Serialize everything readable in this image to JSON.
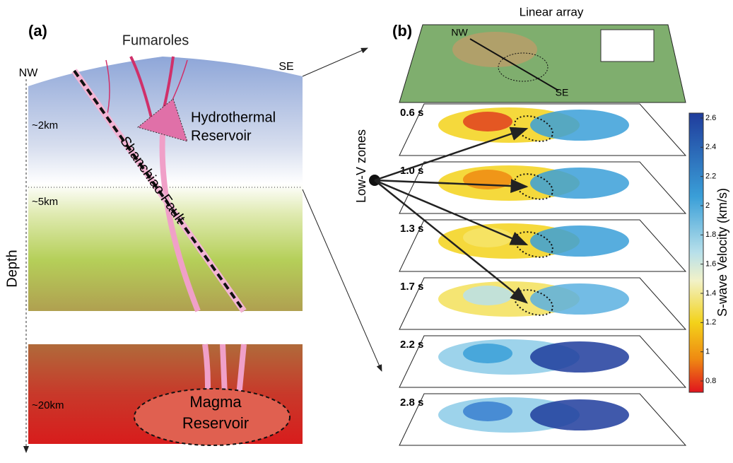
{
  "panel_a": {
    "label": "(a)",
    "fumaroles": "Fumaroles",
    "nw": "NW",
    "se": "SE",
    "depths": [
      "~2km",
      "~5km",
      "~20km"
    ],
    "depth_axis": "Depth",
    "hydrothermal": [
      "Hydrothermal",
      "Reservoir"
    ],
    "fault": "Shanchiao Fault",
    "magma": [
      "Magma",
      "Reservoir"
    ]
  },
  "panel_b": {
    "label": "(b)",
    "linear_array": "Linear array",
    "nw": "NW",
    "se": "SE",
    "low_v": "Low-V zones",
    "slices": [
      "0.6 s",
      "1.0 s",
      "1.3 s",
      "1.7 s",
      "2.2 s",
      "2.8 s"
    ],
    "colorbar": {
      "label": "S-wave Velocity (km/s)",
      "ticks": [
        2.6,
        2.4,
        2.2,
        2,
        1.8,
        1.6,
        1.4,
        1.2,
        1,
        0.8
      ]
    }
  }
}
